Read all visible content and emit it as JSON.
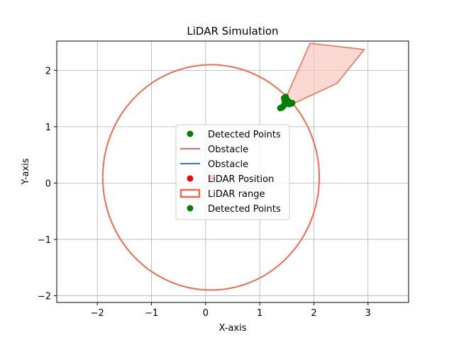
{
  "chart_data": {
    "type": "scatter",
    "title": "LiDAR Simulation",
    "xlabel": "X-axis",
    "ylabel": "Y-axis",
    "xlim": [
      -2.75,
      3.75
    ],
    "ylim": [
      -2.12,
      2.52
    ],
    "xticks": [
      -2,
      -1,
      0,
      1,
      2,
      3
    ],
    "xtick_labels": [
      "−2",
      "−1",
      "0",
      "1",
      "2",
      "3"
    ],
    "yticks": [
      -2,
      -1,
      0,
      1,
      2
    ],
    "ytick_labels": [
      "−2",
      "−1",
      "0",
      "1",
      "2"
    ],
    "grid": true,
    "legend_location": "center",
    "colors": {
      "obstacle_polygon": "#f26b50",
      "obstacle_fill": "#f9c8bd",
      "obstacle_blue": "#3f6fd8",
      "lidar_position": "#ff0000",
      "lidar_range": "#f26b50",
      "detected": "#008000",
      "grid": "#b0b0b0"
    },
    "lidar_position": {
      "x": 0.1,
      "y": 0.1
    },
    "lidar_range_radius": 2.0,
    "obstacle_polygon": [
      {
        "x": 1.5,
        "y": 1.55
      },
      {
        "x": 1.93,
        "y": 2.48
      },
      {
        "x": 2.93,
        "y": 2.37
      },
      {
        "x": 2.43,
        "y": 1.77
      },
      {
        "x": 1.6,
        "y": 1.4
      }
    ],
    "obstacle_blue_line": [
      {
        "x": 1.42,
        "y": 1.35
      },
      {
        "x": 1.5,
        "y": 1.5
      },
      {
        "x": 1.6,
        "y": 1.42
      }
    ],
    "detected_points": [
      {
        "x": 1.38,
        "y": 1.33
      },
      {
        "x": 1.41,
        "y": 1.34
      },
      {
        "x": 1.43,
        "y": 1.36
      },
      {
        "x": 1.45,
        "y": 1.38
      },
      {
        "x": 1.47,
        "y": 1.4
      },
      {
        "x": 1.49,
        "y": 1.44
      },
      {
        "x": 1.5,
        "y": 1.48
      },
      {
        "x": 1.46,
        "y": 1.46
      },
      {
        "x": 1.45,
        "y": 1.51
      },
      {
        "x": 1.48,
        "y": 1.53
      },
      {
        "x": 1.52,
        "y": 1.42
      },
      {
        "x": 1.55,
        "y": 1.4
      },
      {
        "x": 1.58,
        "y": 1.41
      },
      {
        "x": 1.6,
        "y": 1.42
      },
      {
        "x": 1.53,
        "y": 1.45
      }
    ],
    "legend": [
      {
        "label": "Detected Points",
        "kind": "marker",
        "color": "#008000"
      },
      {
        "label": "Obstacle",
        "kind": "line",
        "color": "#f26b50"
      },
      {
        "label": "Obstacle",
        "kind": "line",
        "color": "#3f6fd8"
      },
      {
        "label": "LiDAR Position",
        "kind": "marker",
        "color": "#ff0000"
      },
      {
        "label": "LiDAR range",
        "kind": "patch",
        "color": "#f26b50"
      },
      {
        "label": "Detected Points",
        "kind": "marker",
        "color": "#008000"
      }
    ]
  }
}
